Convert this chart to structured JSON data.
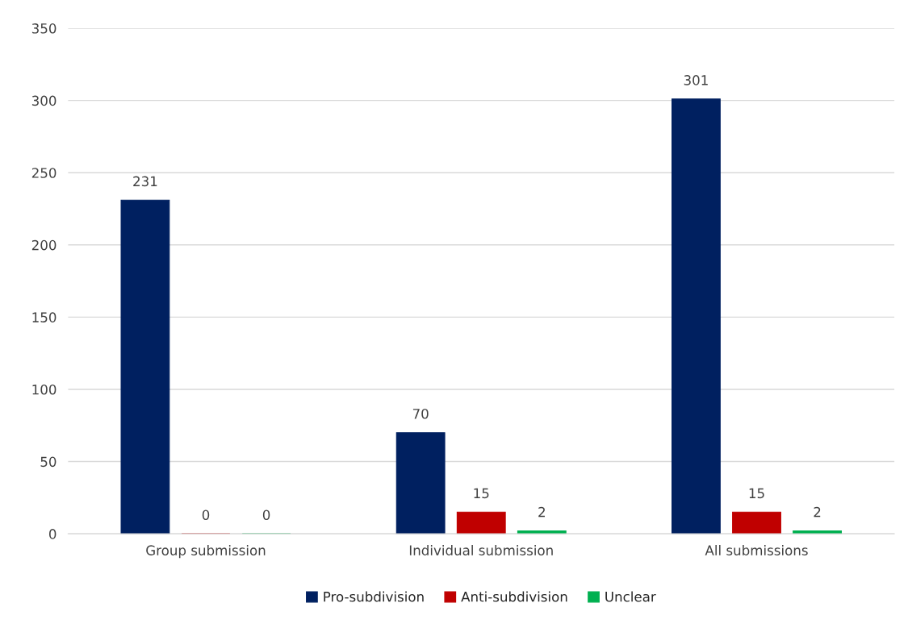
{
  "chart_data": {
    "type": "bar",
    "categories": [
      "Group submission",
      "Individual submission",
      "All submissions"
    ],
    "series": [
      {
        "name": "Pro-subdivision",
        "color": "#002060",
        "values": [
          231,
          70,
          301
        ]
      },
      {
        "name": "Anti-subdivision",
        "color": "#c00000",
        "values": [
          0,
          15,
          15
        ]
      },
      {
        "name": "Unclear",
        "color": "#00b050",
        "values": [
          0,
          2,
          2
        ]
      }
    ],
    "ylim": [
      0,
      350
    ],
    "yticks": [
      0,
      50,
      100,
      150,
      200,
      250,
      300,
      350
    ],
    "grid": "y",
    "legend": "bottom",
    "data_labels": true
  }
}
